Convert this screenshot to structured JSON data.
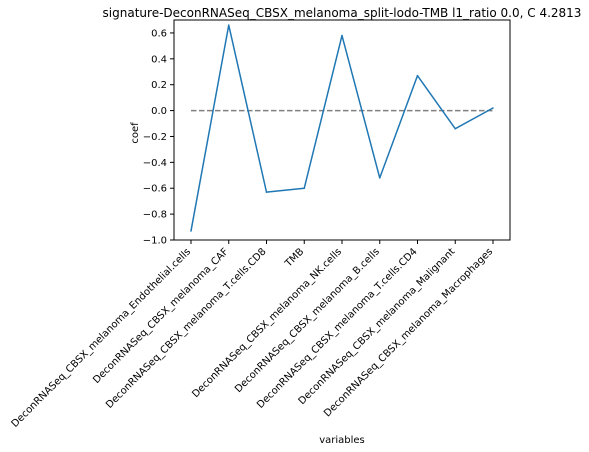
{
  "chart_data": {
    "type": "line",
    "title": "signature-DeconRNASeq_CBSX_melanoma_split-lodo-TMB l1_ratio 0.0, C 4.2813",
    "xlabel": "variables",
    "ylabel": "coef",
    "categories": [
      "DeconRNASeq_CBSX_melanoma_Endothelial.cells",
      "DeconRNASeq_CBSX_melanoma_CAF",
      "DeconRNASeq_CBSX_melanoma_T.cells.CD8",
      "TMB",
      "DeconRNASeq_CBSX_melanoma_NK.cells",
      "DeconRNASeq_CBSX_melanoma_B.cells",
      "DeconRNASeq_CBSX_melanoma_T.cells.CD4",
      "DeconRNASeq_CBSX_melanoma_Malignant",
      "DeconRNASeq_CBSX_melanoma_Macrophages"
    ],
    "values": [
      -0.93,
      0.66,
      -0.63,
      -0.6,
      0.58,
      -0.52,
      0.27,
      -0.14,
      0.02
    ],
    "ylim": [
      -1.0,
      0.7
    ],
    "yticks": [
      -1.0,
      -0.8,
      -0.6,
      -0.4,
      -0.2,
      0.0,
      0.2,
      0.4,
      0.6
    ],
    "ytick_labels": [
      "−1.0",
      "−0.8",
      "−0.6",
      "−0.4",
      "−0.2",
      "0.0",
      "0.2",
      "0.4",
      "0.6"
    ],
    "reference_line": 0.0,
    "line_color": "#1f77b4",
    "reference_color": "#808080",
    "grid": false,
    "legend": "none"
  }
}
